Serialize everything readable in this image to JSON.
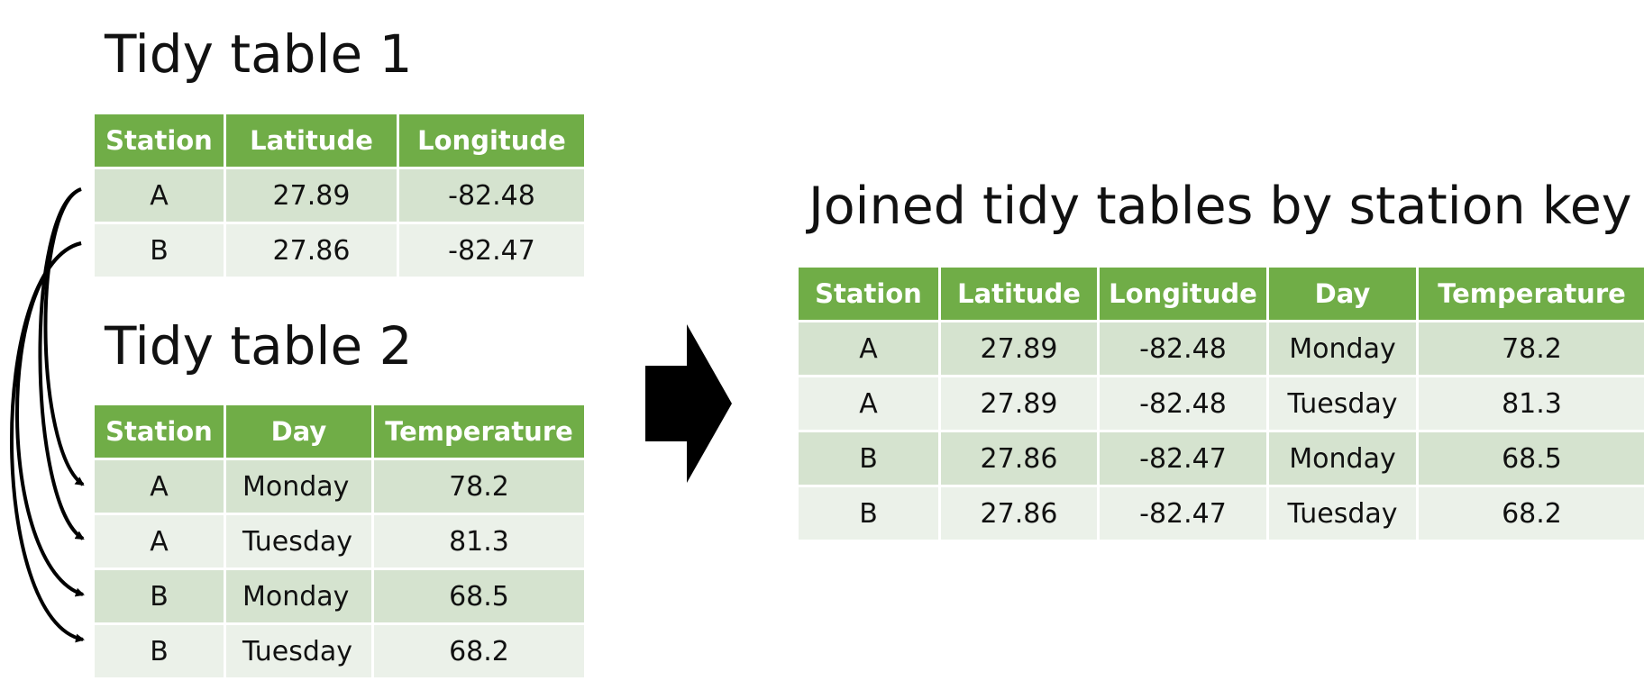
{
  "table1": {
    "title": "Tidy table 1",
    "headers": [
      "Station",
      "Latitude",
      "Longitude"
    ],
    "rows": [
      [
        "A",
        "27.89",
        "-82.48"
      ],
      [
        "B",
        "27.86",
        "-82.47"
      ]
    ]
  },
  "table2": {
    "title": "Tidy table 2",
    "headers": [
      "Station",
      "Day",
      "Temperature"
    ],
    "rows": [
      [
        "A",
        "Monday",
        "78.2"
      ],
      [
        "A",
        "Tuesday",
        "81.3"
      ],
      [
        "B",
        "Monday",
        "68.5"
      ],
      [
        "B",
        "Tuesday",
        "68.2"
      ]
    ]
  },
  "joined": {
    "title": "Joined tidy tables by station key",
    "headers": [
      "Station",
      "Latitude",
      "Longitude",
      "Day",
      "Temperature"
    ],
    "rows": [
      [
        "A",
        "27.89",
        "-82.48",
        "Monday",
        "78.2"
      ],
      [
        "A",
        "27.89",
        "-82.48",
        "Tuesday",
        "81.3"
      ],
      [
        "B",
        "27.86",
        "-82.47",
        "Monday",
        "68.5"
      ],
      [
        "B",
        "27.86",
        "-82.47",
        "Tuesday",
        "68.2"
      ]
    ]
  },
  "colors": {
    "header": "#70ad47",
    "row_dark": "#d5e3cf",
    "row_light": "#ebf1e9"
  },
  "icons": {
    "join_arrow": "right-arrow-icon",
    "key_links": "curved-connector-arrows"
  }
}
